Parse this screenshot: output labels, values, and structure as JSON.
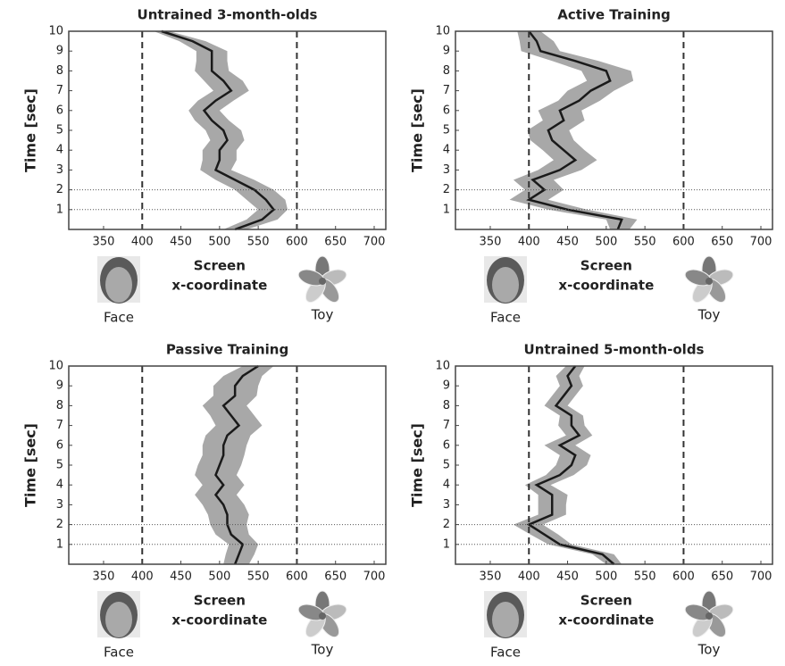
{
  "chart_data": [
    {
      "type": "line",
      "title": "Untrained 3-month-olds",
      "xlabel": [
        "Screen",
        "x-coordinate"
      ],
      "ylabel": "Time [sec]",
      "left_label": "Face",
      "right_label": "Toy",
      "xlim": [
        305,
        715
      ],
      "ylim": [
        0,
        10
      ],
      "xticks": [
        350,
        400,
        450,
        500,
        550,
        600,
        650,
        700
      ],
      "yticks": [
        1,
        2,
        3,
        4,
        5,
        6,
        7,
        8,
        9,
        10
      ],
      "vlines": [
        400,
        600
      ],
      "hlines": [
        1,
        2
      ],
      "color": "#1a1a1a",
      "band_color": "#a8a8a8",
      "y": [
        0,
        0.5,
        1,
        1.5,
        2,
        2.5,
        3,
        3.5,
        4,
        4.5,
        5,
        5.5,
        6,
        6.5,
        7,
        7.5,
        8,
        8.5,
        9,
        9.5,
        10
      ],
      "x": [
        520,
        555,
        570,
        560,
        545,
        520,
        495,
        500,
        500,
        510,
        505,
        490,
        480,
        495,
        515,
        505,
        490,
        490,
        490,
        465,
        425
      ],
      "lower": [
        505,
        535,
        550,
        535,
        520,
        495,
        475,
        478,
        478,
        488,
        482,
        468,
        460,
        472,
        492,
        480,
        468,
        470,
        470,
        448,
        415
      ],
      "upper": [
        535,
        575,
        588,
        585,
        570,
        545,
        515,
        522,
        522,
        532,
        528,
        512,
        500,
        518,
        538,
        530,
        512,
        510,
        510,
        482,
        435
      ]
    },
    {
      "type": "line",
      "title": "Active Training",
      "xlabel": [
        "Screen",
        "x-coordinate"
      ],
      "ylabel": "Time [sec]",
      "left_label": "Face",
      "right_label": "Toy",
      "xlim": [
        305,
        715
      ],
      "ylim": [
        0,
        10
      ],
      "xticks": [
        350,
        400,
        450,
        500,
        550,
        600,
        650,
        700
      ],
      "yticks": [
        1,
        2,
        3,
        4,
        5,
        6,
        7,
        8,
        9,
        10
      ],
      "vlines": [
        400,
        600
      ],
      "hlines": [
        1,
        2
      ],
      "color": "#1a1a1a",
      "band_color": "#a8a8a8",
      "y": [
        0,
        0.5,
        1,
        1.5,
        2,
        2.5,
        3,
        3.5,
        4,
        4.5,
        5,
        5.5,
        6,
        6.5,
        7,
        7.5,
        8,
        8.5,
        9,
        9.5,
        10
      ],
      "x": [
        515,
        520,
        450,
        400,
        420,
        405,
        440,
        460,
        445,
        430,
        425,
        445,
        440,
        465,
        480,
        505,
        500,
        460,
        415,
        410,
        400
      ],
      "lower": [
        505,
        500,
        425,
        375,
        395,
        380,
        412,
        432,
        418,
        402,
        398,
        418,
        412,
        438,
        450,
        475,
        468,
        430,
        390,
        388,
        385
      ],
      "upper": [
        530,
        540,
        475,
        425,
        445,
        432,
        468,
        488,
        472,
        458,
        452,
        472,
        468,
        492,
        510,
        535,
        532,
        490,
        440,
        432,
        415
      ]
    },
    {
      "type": "line",
      "title": "Passive Training",
      "xlabel": [
        "Screen",
        "x-coordinate"
      ],
      "ylabel": "Time [sec]",
      "left_label": "Face",
      "right_label": "Toy",
      "xlim": [
        305,
        715
      ],
      "ylim": [
        0,
        10
      ],
      "xticks": [
        350,
        400,
        450,
        500,
        550,
        600,
        650,
        700
      ],
      "yticks": [
        1,
        2,
        3,
        4,
        5,
        6,
        7,
        8,
        9,
        10
      ],
      "vlines": [
        400,
        600
      ],
      "hlines": [
        1,
        2
      ],
      "color": "#1a1a1a",
      "band_color": "#a8a8a8",
      "y": [
        0,
        0.5,
        1,
        1.5,
        2,
        2.5,
        3,
        3.5,
        4,
        4.5,
        5,
        5.5,
        6,
        6.5,
        7,
        7.5,
        8,
        8.5,
        9,
        9.5,
        10
      ],
      "x": [
        520,
        525,
        530,
        515,
        510,
        510,
        505,
        495,
        505,
        495,
        500,
        505,
        505,
        510,
        525,
        515,
        505,
        520,
        520,
        530,
        550
      ],
      "lower": [
        505,
        508,
        512,
        495,
        488,
        485,
        478,
        468,
        478,
        468,
        472,
        478,
        478,
        482,
        495,
        488,
        478,
        492,
        492,
        505,
        530
      ],
      "upper": [
        538,
        545,
        550,
        538,
        535,
        538,
        532,
        522,
        532,
        522,
        528,
        532,
        535,
        540,
        555,
        545,
        535,
        548,
        550,
        555,
        570
      ]
    },
    {
      "type": "line",
      "title": "Untrained 5-month-olds",
      "xlabel": [
        "Screen",
        "x-coordinate"
      ],
      "ylabel": "Time [sec]",
      "left_label": "Face",
      "right_label": "Toy",
      "xlim": [
        305,
        715
      ],
      "ylim": [
        0,
        10
      ],
      "xticks": [
        350,
        400,
        450,
        500,
        550,
        600,
        650,
        700
      ],
      "yticks": [
        1,
        2,
        3,
        4,
        5,
        6,
        7,
        8,
        9,
        10
      ],
      "vlines": [
        400,
        600
      ],
      "hlines": [
        1,
        2
      ],
      "color": "#1a1a1a",
      "band_color": "#a8a8a8",
      "y": [
        0,
        0.5,
        1,
        1.5,
        2,
        2.5,
        3,
        3.5,
        4,
        4.5,
        5,
        5.5,
        6,
        6.5,
        7,
        7.5,
        8,
        8.5,
        9,
        9.5,
        10
      ],
      "x": [
        510,
        495,
        440,
        420,
        400,
        430,
        430,
        430,
        410,
        440,
        455,
        460,
        440,
        465,
        455,
        455,
        435,
        445,
        455,
        450,
        460
      ],
      "lower": [
        500,
        482,
        425,
        402,
        380,
        412,
        412,
        412,
        395,
        422,
        435,
        440,
        420,
        448,
        438,
        440,
        420,
        430,
        440,
        435,
        448
      ],
      "upper": [
        520,
        510,
        455,
        438,
        418,
        448,
        448,
        450,
        428,
        458,
        475,
        480,
        460,
        482,
        472,
        470,
        450,
        460,
        470,
        465,
        472
      ]
    }
  ]
}
